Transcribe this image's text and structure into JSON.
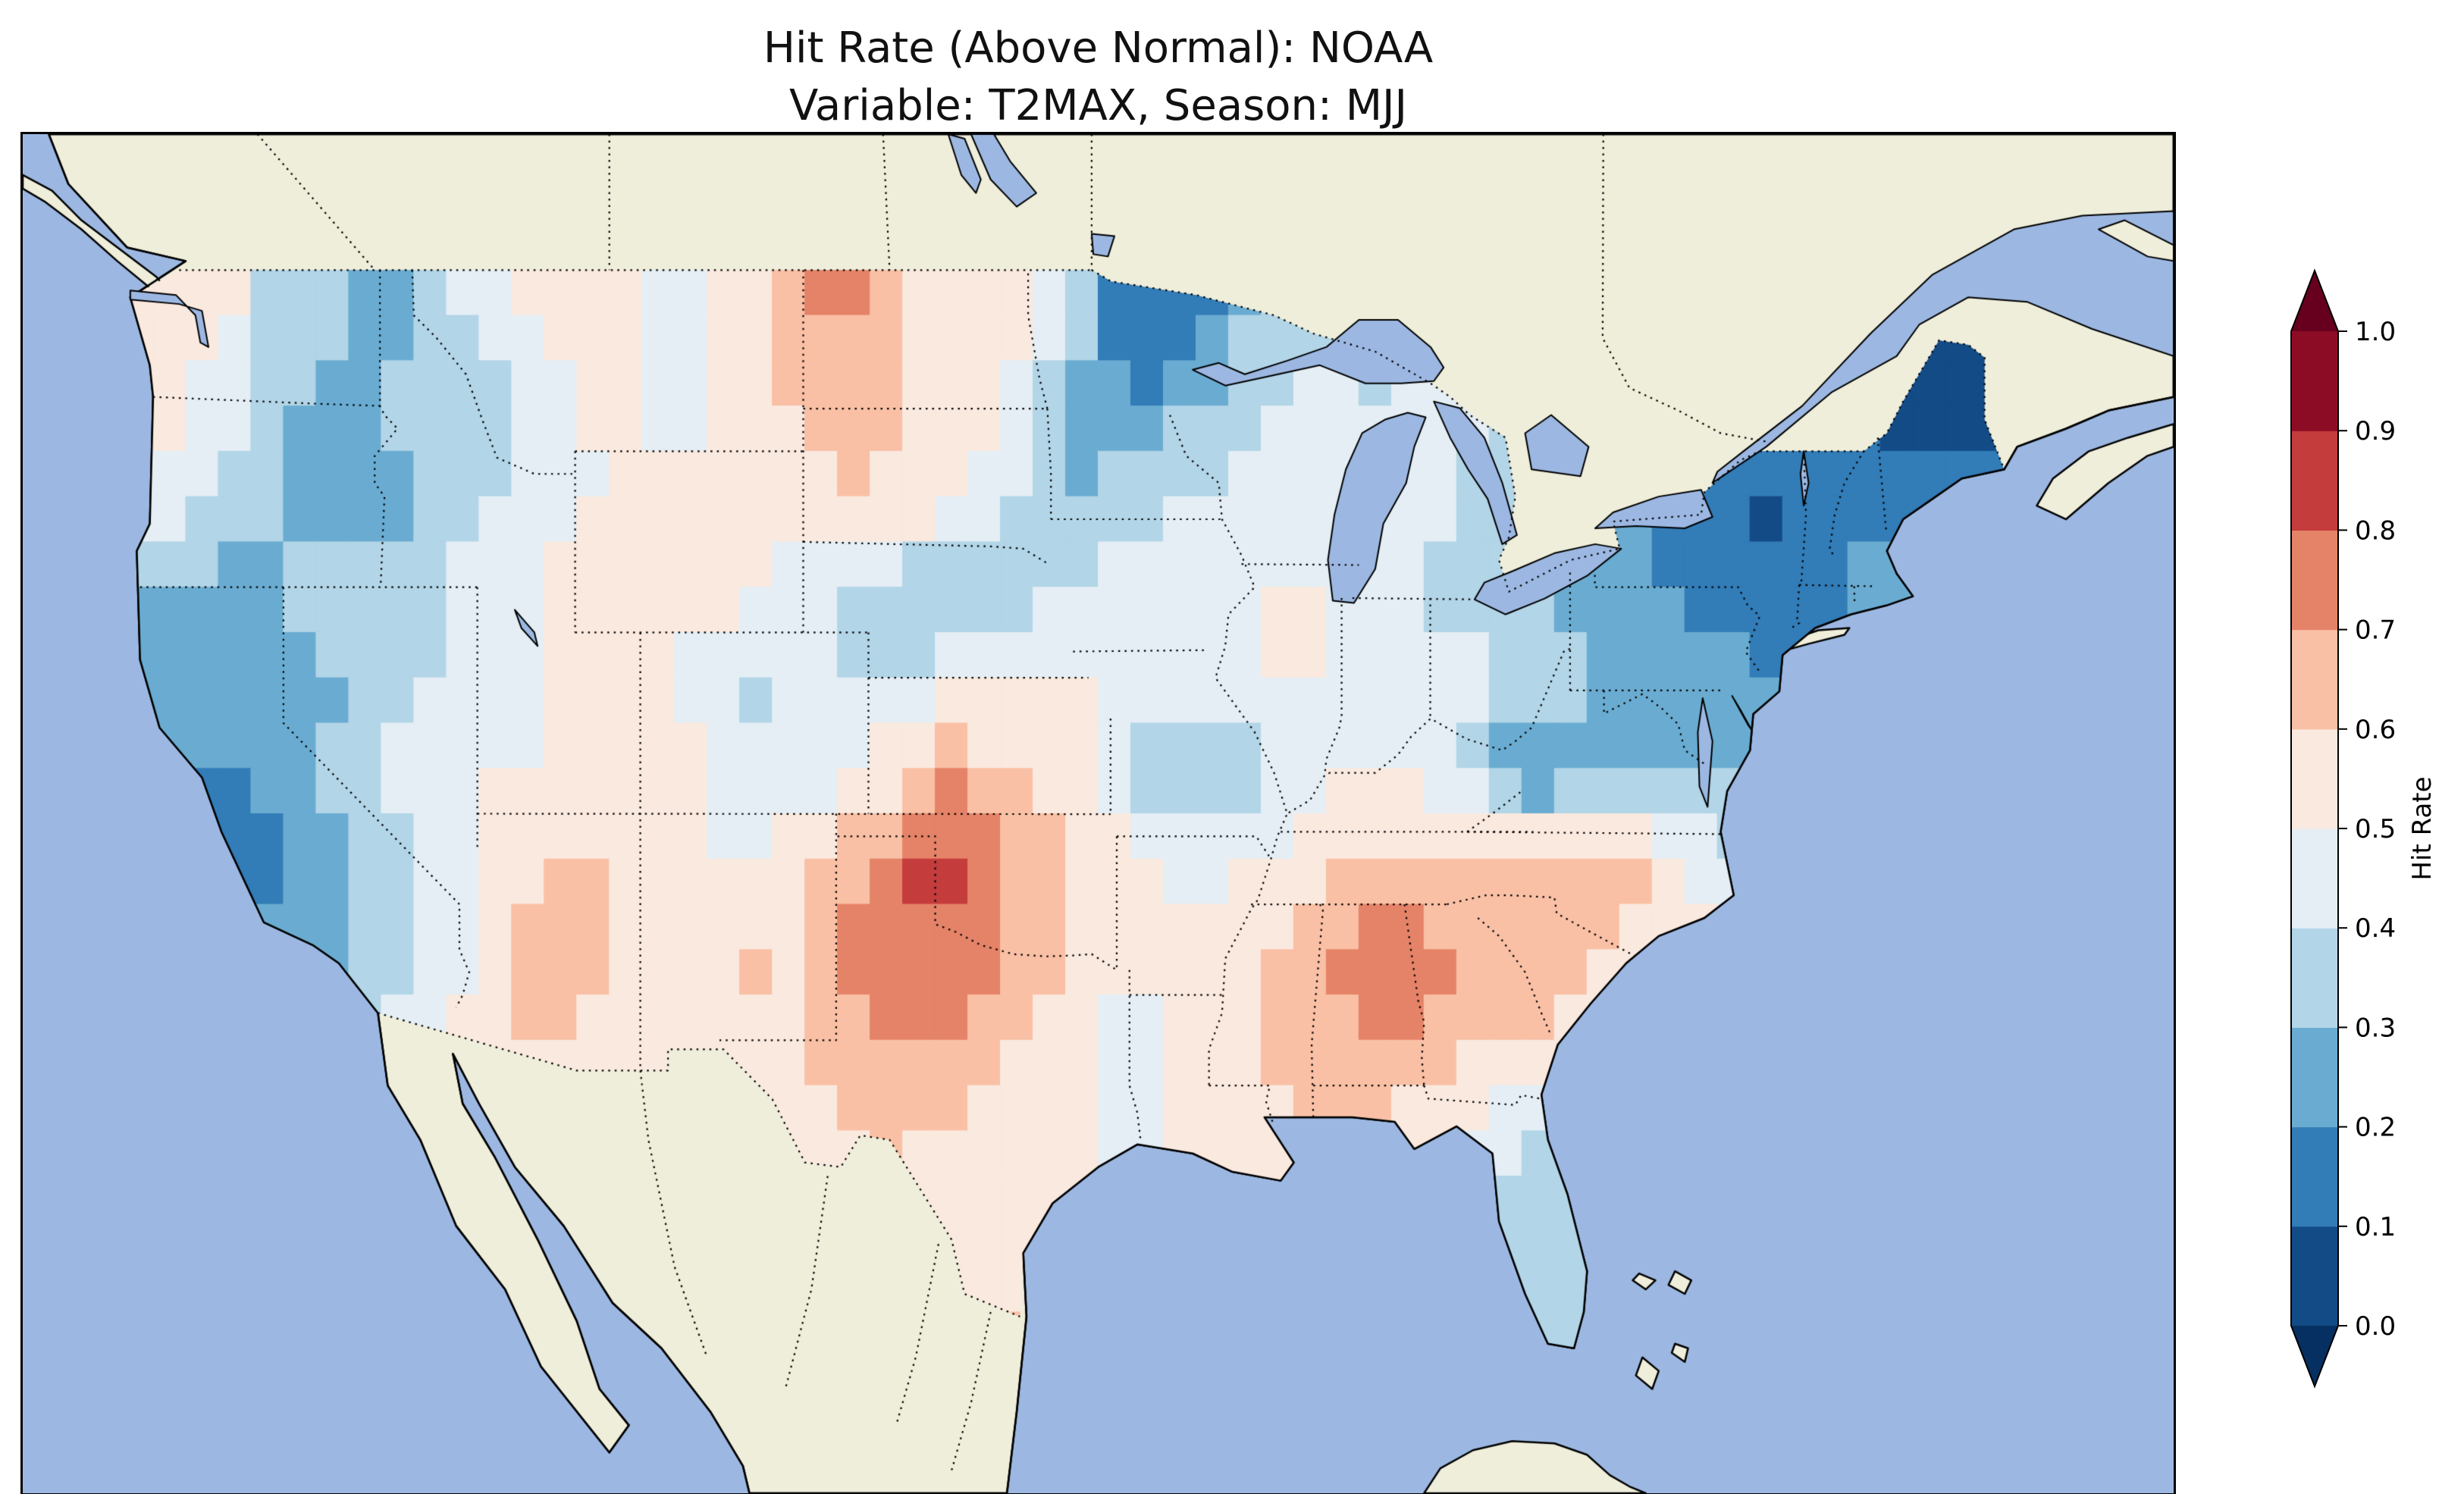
{
  "figure": {
    "title_line1": "Hit Rate (Above Normal): NOAA",
    "title_line2": "Variable: T2MAX, Season: MJJ"
  },
  "map": {
    "ocean_color": "#9cb8e2",
    "land_color": "#efeedb",
    "coastline_color": "#000000",
    "border_line_style": "dotted"
  },
  "colorbar": {
    "label": "Hit Rate",
    "ticks": [
      "1.0",
      "0.9",
      "0.8",
      "0.7",
      "0.6",
      "0.5",
      "0.4",
      "0.3",
      "0.2",
      "0.1",
      "0.0"
    ],
    "band_colors_low_to_high": [
      "#134b87",
      "#327cb7",
      "#6aacd1",
      "#b2d5e7",
      "#e4eef4",
      "#fae9df",
      "#f9c0a5",
      "#e58368",
      "#c43c3c",
      "#8d0c25"
    ],
    "under_arrow_color": "#053061",
    "over_arrow_color": "#67001f"
  },
  "chart_data": {
    "type": "heatmap",
    "title": "Hit Rate (Above Normal): NOAA\nVariable: T2MAX, Season: MJJ",
    "metric": "Hit Rate (Above Normal)",
    "source": "NOAA",
    "variable": "T2MAX",
    "season": "MJJ",
    "colorbar_label": "Hit Rate",
    "value_range": [
      0.0,
      1.0
    ],
    "band_width": 0.1,
    "legend_position": "right",
    "extent": {
      "lon": [
        -128,
        -62
      ],
      "lat": [
        22,
        52
      ]
    },
    "grid": {
      "note": "Approximate hit-rate values on a 2-degree grid over CONUS read from the map; null = outside plotted domain",
      "lon_start": -124,
      "lon_step": 2,
      "lat_start": 48,
      "lat_step": -2,
      "values": [
        [
          0.55,
          0.55,
          0.35,
          0.3,
          0.25,
          0.45,
          0.55,
          0.55,
          0.45,
          0.55,
          0.7,
          0.7,
          0.55,
          0.55,
          0.45,
          0.1,
          0.15,
          0.35,
          0.3,
          0.35,
          0.4,
          0.4,
          null,
          null,
          null,
          null,
          0.1,
          0.05,
          0.05
        ],
        [
          0.55,
          0.45,
          0.3,
          0.25,
          0.35,
          0.3,
          0.45,
          0.55,
          0.45,
          0.55,
          0.6,
          0.65,
          0.55,
          0.55,
          0.25,
          0.2,
          0.3,
          0.4,
          0.45,
          0.4,
          0.45,
          0.4,
          null,
          null,
          0.3,
          0.25,
          0.15,
          0.05,
          0.05
        ],
        [
          0.45,
          0.4,
          0.3,
          0.25,
          0.3,
          0.4,
          0.45,
          0.5,
          0.55,
          0.6,
          0.55,
          0.6,
          0.55,
          0.45,
          0.3,
          0.35,
          0.4,
          0.45,
          0.5,
          0.45,
          0.4,
          0.3,
          0.35,
          0.2,
          0.1,
          0.05,
          0.2,
          0.15,
          0.2
        ],
        [
          0.3,
          0.25,
          0.3,
          0.4,
          0.3,
          0.45,
          0.5,
          0.55,
          0.6,
          0.55,
          0.45,
          0.35,
          0.3,
          0.3,
          0.4,
          0.5,
          0.5,
          0.5,
          0.5,
          0.45,
          0.35,
          0.3,
          0.25,
          0.2,
          0.15,
          0.15,
          0.2,
          0.25,
          null
        ],
        [
          0.25,
          0.25,
          0.2,
          0.3,
          0.4,
          0.45,
          0.5,
          0.55,
          0.5,
          0.35,
          0.45,
          0.35,
          0.45,
          0.5,
          0.5,
          0.5,
          0.45,
          0.5,
          0.5,
          0.45,
          0.45,
          0.4,
          0.3,
          0.3,
          0.25,
          0.2,
          null,
          null,
          null
        ],
        [
          null,
          0.2,
          0.25,
          0.4,
          0.45,
          0.5,
          0.5,
          0.55,
          0.55,
          0.4,
          0.45,
          0.5,
          0.7,
          0.6,
          0.55,
          0.35,
          0.25,
          0.4,
          0.5,
          0.5,
          0.45,
          0.15,
          0.25,
          0.3,
          0.25,
          null,
          null,
          null,
          null
        ],
        [
          null,
          0.1,
          0.15,
          0.3,
          0.4,
          0.5,
          0.6,
          0.6,
          0.55,
          0.5,
          0.55,
          0.7,
          0.85,
          0.7,
          0.6,
          0.55,
          0.45,
          0.5,
          0.55,
          0.6,
          0.6,
          0.65,
          0.7,
          0.6,
          0.45,
          null,
          null,
          null,
          null
        ],
        [
          null,
          null,
          0.25,
          0.3,
          0.4,
          0.5,
          0.7,
          0.6,
          0.55,
          0.6,
          0.6,
          0.75,
          0.8,
          0.7,
          0.6,
          0.55,
          0.55,
          0.6,
          0.7,
          0.75,
          0.7,
          0.7,
          0.6,
          0.55,
          null,
          null,
          null,
          null,
          null
        ],
        [
          null,
          null,
          null,
          0.3,
          0.45,
          0.55,
          0.6,
          0.55,
          0.55,
          0.6,
          0.6,
          0.7,
          0.7,
          0.6,
          0.55,
          0.45,
          0.55,
          0.6,
          0.65,
          0.75,
          0.65,
          0.6,
          0.55,
          null,
          null,
          null,
          null,
          null,
          null
        ],
        [
          null,
          null,
          null,
          null,
          null,
          null,
          null,
          null,
          null,
          null,
          0.55,
          0.6,
          0.6,
          0.55,
          0.6,
          0.45,
          0.55,
          0.55,
          0.6,
          0.55,
          0.5,
          0.4,
          0.4,
          null,
          null,
          null,
          null,
          null,
          null
        ],
        [
          null,
          null,
          null,
          null,
          null,
          null,
          null,
          null,
          null,
          null,
          null,
          0.6,
          0.6,
          0.55,
          0.5,
          null,
          null,
          null,
          null,
          null,
          null,
          0.3,
          0.3,
          null,
          null,
          null,
          null,
          null,
          null
        ],
        [
          null,
          null,
          null,
          null,
          null,
          null,
          null,
          null,
          null,
          null,
          null,
          null,
          null,
          0.6,
          null,
          null,
          null,
          null,
          null,
          null,
          null,
          0.4,
          0.3,
          null,
          null,
          null,
          null,
          null,
          null
        ]
      ]
    }
  }
}
